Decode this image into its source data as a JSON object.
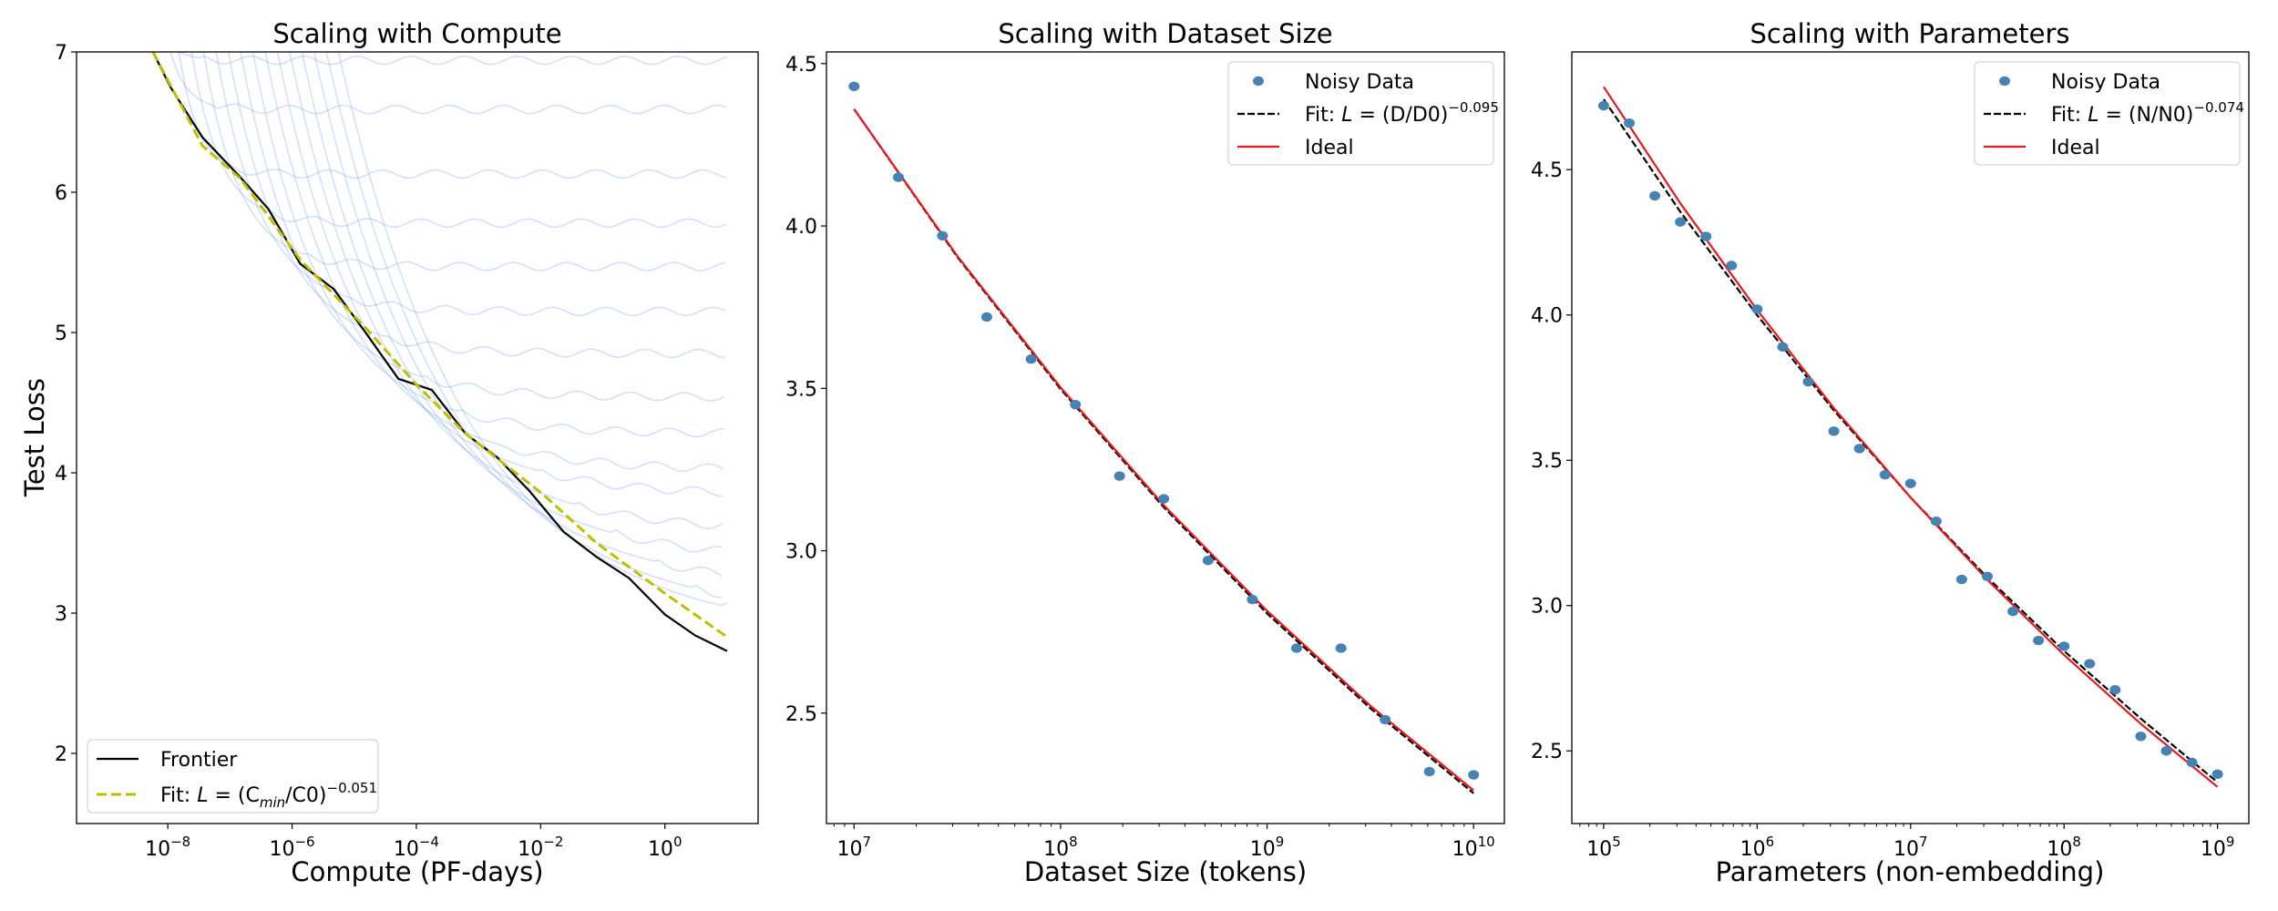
{
  "chart_data": [
    {
      "type": "line",
      "title": "Scaling with Compute",
      "xlabel": "Compute (PF-days)",
      "ylabel": "Test Loss",
      "xscale": "log",
      "xlim": [
        3.4e-10,
        31.6
      ],
      "ylim": [
        1.5,
        7
      ],
      "xticks": [
        {
          "base": "10",
          "exp": "−8",
          "value": 1e-08
        },
        {
          "base": "10",
          "exp": "−6",
          "value": 1e-06
        },
        {
          "base": "10",
          "exp": "−4",
          "value": 0.0001
        },
        {
          "base": "10",
          "exp": "−2",
          "value": 0.01
        },
        {
          "base": "10",
          "exp": "0",
          "value": 1
        }
      ],
      "yticks": [
        {
          "label": "2",
          "value": 2
        },
        {
          "label": "3",
          "value": 3
        },
        {
          "label": "4",
          "value": 4
        },
        {
          "label": "5",
          "value": 5
        },
        {
          "label": "6",
          "value": 6
        },
        {
          "label": "7",
          "value": 7
        }
      ],
      "grid": false,
      "legend_position": "lower-left",
      "colors": {
        "frontier": "#000000",
        "fit": "#bfbf00",
        "runs": "#6495ed"
      },
      "legend": [
        {
          "key": "frontier",
          "label": "Frontier"
        },
        {
          "key": "fit",
          "prefix": "Fit: ",
          "lhs": "L",
          "eq": " = (C",
          "sub": "min",
          "rest": "/C0)",
          "sup": "−0.051"
        }
      ],
      "series": [
        {
          "key": "frontier",
          "name": "Frontier",
          "style": "solid",
          "x": [
            5.75e-09,
            1.1e-08,
            3.63e-08,
            1.45e-07,
            4.17e-07,
            1.35e-06,
            4.68e-06,
            1.41e-05,
            5.13e-05,
            0.000178,
            0.000617,
            0.002,
            0.00661,
            0.0234,
            0.0794,
            0.263,
            1,
            3.09,
            10
          ],
          "y": [
            7.0,
            6.75,
            6.39,
            6.11,
            5.88,
            5.49,
            5.31,
            5.02,
            4.67,
            4.59,
            4.28,
            4.11,
            3.87,
            3.58,
            3.4,
            3.25,
            2.99,
            2.84,
            2.73
          ]
        },
        {
          "key": "fit",
          "name": "Fit",
          "style": "dashed",
          "x": [
            5.75e-09,
            3.63e-08,
            1.45e-07,
            4.17e-07,
            1.35e-06,
            1.41e-05,
            0.0001,
            0.000617,
            0.0107,
            0.0794,
            1,
            10
          ],
          "y": [
            7.0,
            6.33,
            6.1,
            5.83,
            5.52,
            5.05,
            4.63,
            4.28,
            3.85,
            3.5,
            3.14,
            2.83
          ]
        }
      ],
      "runs_final_loss": [
        6.94,
        6.59,
        6.13,
        5.78,
        5.47,
        5.15,
        4.85,
        4.54,
        4.28,
        4.02,
        3.84,
        3.58,
        3.37,
        3.16,
        2.96,
        2.83
      ]
    },
    {
      "type": "scatter",
      "title": "Scaling with Dataset Size",
      "xlabel": "Dataset Size (tokens)",
      "xscale": "log",
      "xlim": [
        7350000.0,
        14100000000.0
      ],
      "ylim": [
        2.16,
        4.536
      ],
      "xticks": [
        {
          "base": "10",
          "exp": "7",
          "value": 10000000.0
        },
        {
          "base": "10",
          "exp": "8",
          "value": 100000000.0
        },
        {
          "base": "10",
          "exp": "9",
          "value": 1000000000.0
        },
        {
          "base": "10",
          "exp": "10",
          "value": 10000000000.0
        }
      ],
      "yticks": [
        {
          "label": "2.5",
          "value": 2.5
        },
        {
          "label": "3.0",
          "value": 3.0
        },
        {
          "label": "3.5",
          "value": 3.5
        },
        {
          "label": "4.0",
          "value": 4.0
        },
        {
          "label": "4.5",
          "value": 4.5
        }
      ],
      "grid": false,
      "legend_position": "upper-right",
      "colors": {
        "points": "#4682b4",
        "fit": "#000000",
        "ideal": "#e41a1c"
      },
      "legend": [
        {
          "key": "points",
          "label": "Noisy Data"
        },
        {
          "key": "fit",
          "prefix": "Fit: ",
          "lhs": "L",
          "eq": " = (D/D0)",
          "sup": "−0.095"
        },
        {
          "key": "ideal",
          "label": "Ideal"
        }
      ],
      "points": {
        "x": [
          10000000.0,
          16400000.0,
          26800000.0,
          43900000.0,
          72000000.0,
          118000000.0,
          193000000.0,
          316000000.0,
          518000000.0,
          848000000.0,
          1390000000.0,
          2280000000.0,
          3730000000.0,
          6110000000.0,
          10000000000.0
        ],
        "y": [
          4.43,
          4.15,
          3.97,
          3.72,
          3.59,
          3.45,
          3.23,
          3.16,
          2.97,
          2.85,
          2.7,
          2.7,
          2.48,
          2.32,
          2.31
        ]
      },
      "fit": {
        "x": [
          10000000.0,
          31600000.0,
          100000000.0,
          316000000.0,
          1000000000.0,
          3160000000.0,
          10000000000.0
        ],
        "y": [
          4.36,
          3.905,
          3.498,
          3.134,
          2.807,
          2.515,
          2.253
        ]
      },
      "ideal": {
        "x": [
          10000000.0,
          31600000.0,
          100000000.0,
          316000000.0,
          1000000000.0,
          3160000000.0,
          10000000000.0
        ],
        "y": [
          4.36,
          3.908,
          3.503,
          3.14,
          2.815,
          2.523,
          2.262
        ]
      }
    },
    {
      "type": "scatter",
      "title": "Scaling with Parameters",
      "xlabel": "Parameters (non-embedding)",
      "xscale": "log",
      "xlim": [
        62000.0,
        1600000000.0
      ],
      "ylim": [
        2.25,
        4.905
      ],
      "xticks": [
        {
          "base": "10",
          "exp": "5",
          "value": 100000.0
        },
        {
          "base": "10",
          "exp": "6",
          "value": 1000000.0
        },
        {
          "base": "10",
          "exp": "7",
          "value": 10000000.0
        },
        {
          "base": "10",
          "exp": "8",
          "value": 100000000.0
        },
        {
          "base": "10",
          "exp": "9",
          "value": 1000000000.0
        }
      ],
      "yticks": [
        {
          "label": "2.5",
          "value": 2.5
        },
        {
          "label": "3.0",
          "value": 3.0
        },
        {
          "label": "3.5",
          "value": 3.5
        },
        {
          "label": "4.0",
          "value": 4.0
        },
        {
          "label": "4.5",
          "value": 4.5
        }
      ],
      "grid": false,
      "legend_position": "upper-right",
      "colors": {
        "points": "#4682b4",
        "fit": "#000000",
        "ideal": "#e41a1c"
      },
      "legend": [
        {
          "key": "points",
          "label": "Noisy Data"
        },
        {
          "key": "fit",
          "prefix": "Fit: ",
          "lhs": "L",
          "eq": " = (N/N0)",
          "sup": "−0.074"
        },
        {
          "key": "ideal",
          "label": "Ideal"
        }
      ],
      "points": {
        "x": [
          100000.0,
          146800.0,
          215400.0,
          316200.0,
          464200.0,
          681300.0,
          1000000.0,
          1468000.0,
          2154000.0,
          3162000.0,
          4642000.0,
          6813000.0,
          10000000.0,
          14680000.0,
          21540000.0,
          31620000.0,
          46420000.0,
          68130000.0,
          100000000.0,
          146800000.0,
          215400000.0,
          316200000.0,
          464200000.0,
          681300000.0,
          1000000000.0
        ],
        "y": [
          4.72,
          4.66,
          4.41,
          4.32,
          4.27,
          4.17,
          4.02,
          3.89,
          3.77,
          3.6,
          3.54,
          3.45,
          3.42,
          3.29,
          3.09,
          3.1,
          2.98,
          2.88,
          2.86,
          2.8,
          2.71,
          2.55,
          2.5,
          2.46,
          2.42
        ]
      },
      "fit": {
        "x": [
          100000.0,
          316000.0,
          1000000.0,
          3160000.0,
          10000000.0,
          31600000.0,
          100000000.0,
          316000000.0,
          1000000000.0
        ],
        "y": [
          4.742,
          4.355,
          3.999,
          3.672,
          3.372,
          3.097,
          2.844,
          2.611,
          2.392
        ]
      },
      "ideal": {
        "x": [
          100000.0,
          316000.0,
          1000000.0,
          3160000.0,
          10000000.0,
          31600000.0,
          100000000.0,
          316000000.0,
          1000000000.0
        ],
        "y": [
          4.785,
          4.384,
          4.017,
          3.68,
          3.372,
          3.089,
          2.83,
          2.593,
          2.376
        ]
      }
    }
  ]
}
